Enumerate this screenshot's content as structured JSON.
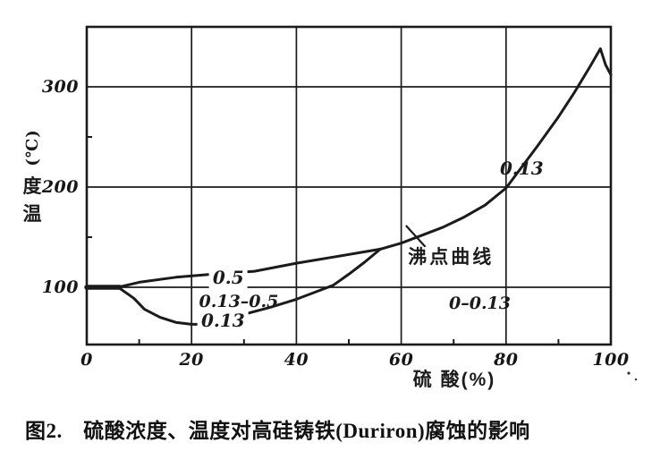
{
  "figure": {
    "caption": "图2.　硫酸浓度、温度对高硅铸铁(Duriron)腐蚀的影响"
  },
  "chart_data": {
    "type": "line",
    "title": "",
    "xlabel": "硫 酸(%)",
    "ylabel": "温度(℃)",
    "ylabel_stack": [
      {
        "text": "(℃)"
      },
      {
        "text": "度"
      },
      {
        "text": "温"
      }
    ],
    "xlim": [
      0,
      100
    ],
    "ylim": [
      43,
      360
    ],
    "xticks": [
      0,
      20,
      40,
      60,
      80,
      100
    ],
    "yticks": [
      100,
      200,
      300
    ],
    "x_minor_ticks": [
      10,
      30,
      50,
      70,
      90
    ],
    "y_minor_ticks": [
      150,
      250
    ],
    "grid": true,
    "legend_position": "none",
    "ink_color": "#1b1b1b",
    "series": [
      {
        "name": "0.5",
        "points": [
          [
            0,
            100
          ],
          [
            6,
            100
          ],
          [
            10,
            105
          ],
          [
            17,
            110
          ],
          [
            24,
            113
          ],
          [
            32,
            116
          ],
          [
            40,
            124
          ],
          [
            48,
            131
          ],
          [
            56,
            138
          ]
        ]
      },
      {
        "name": "0.13",
        "points": [
          [
            0,
            100
          ],
          [
            6,
            100
          ],
          [
            9,
            89
          ],
          [
            11,
            78
          ],
          [
            14,
            70
          ],
          [
            17,
            65
          ],
          [
            20,
            63
          ],
          [
            23,
            63
          ],
          [
            26,
            67
          ],
          [
            30,
            73
          ],
          [
            35,
            80
          ],
          [
            40,
            88
          ],
          [
            44,
            96
          ],
          [
            47,
            102
          ],
          [
            50,
            113
          ],
          [
            53,
            125
          ],
          [
            56,
            138
          ]
        ]
      },
      {
        "name": "沸点曲线",
        "points": [
          [
            56,
            138
          ],
          [
            60,
            144
          ],
          [
            64,
            152
          ],
          [
            68,
            160
          ],
          [
            72,
            170
          ],
          [
            76,
            182
          ],
          [
            80,
            199
          ],
          [
            83,
            220
          ],
          [
            86,
            241
          ],
          [
            90,
            270
          ],
          [
            93,
            294
          ],
          [
            96,
            320
          ],
          [
            98,
            338
          ],
          [
            99,
            322
          ],
          [
            100,
            312
          ]
        ]
      }
    ],
    "annotations": [
      {
        "text": "0.5",
        "x": 27,
        "y": 110,
        "mask": true,
        "style": "num"
      },
      {
        "text": "0.13–0.5",
        "x": 29,
        "y": 86,
        "mask": false,
        "style": "num-sm"
      },
      {
        "text": "0.13",
        "x": 26,
        "y": 67,
        "mask": true,
        "style": "num"
      },
      {
        "text": "沸点曲线",
        "x": 69.5,
        "y": 131,
        "mask": false,
        "style": "cjk"
      },
      {
        "text": "0.13",
        "x": 83,
        "y": 219,
        "mask": false,
        "style": "num"
      },
      {
        "text": "0–0.13",
        "x": 75,
        "y": 84,
        "mask": false,
        "style": "num-sm"
      }
    ],
    "leader_line": {
      "from": [
        61,
        161
      ],
      "to": [
        64.5,
        141
      ]
    }
  }
}
